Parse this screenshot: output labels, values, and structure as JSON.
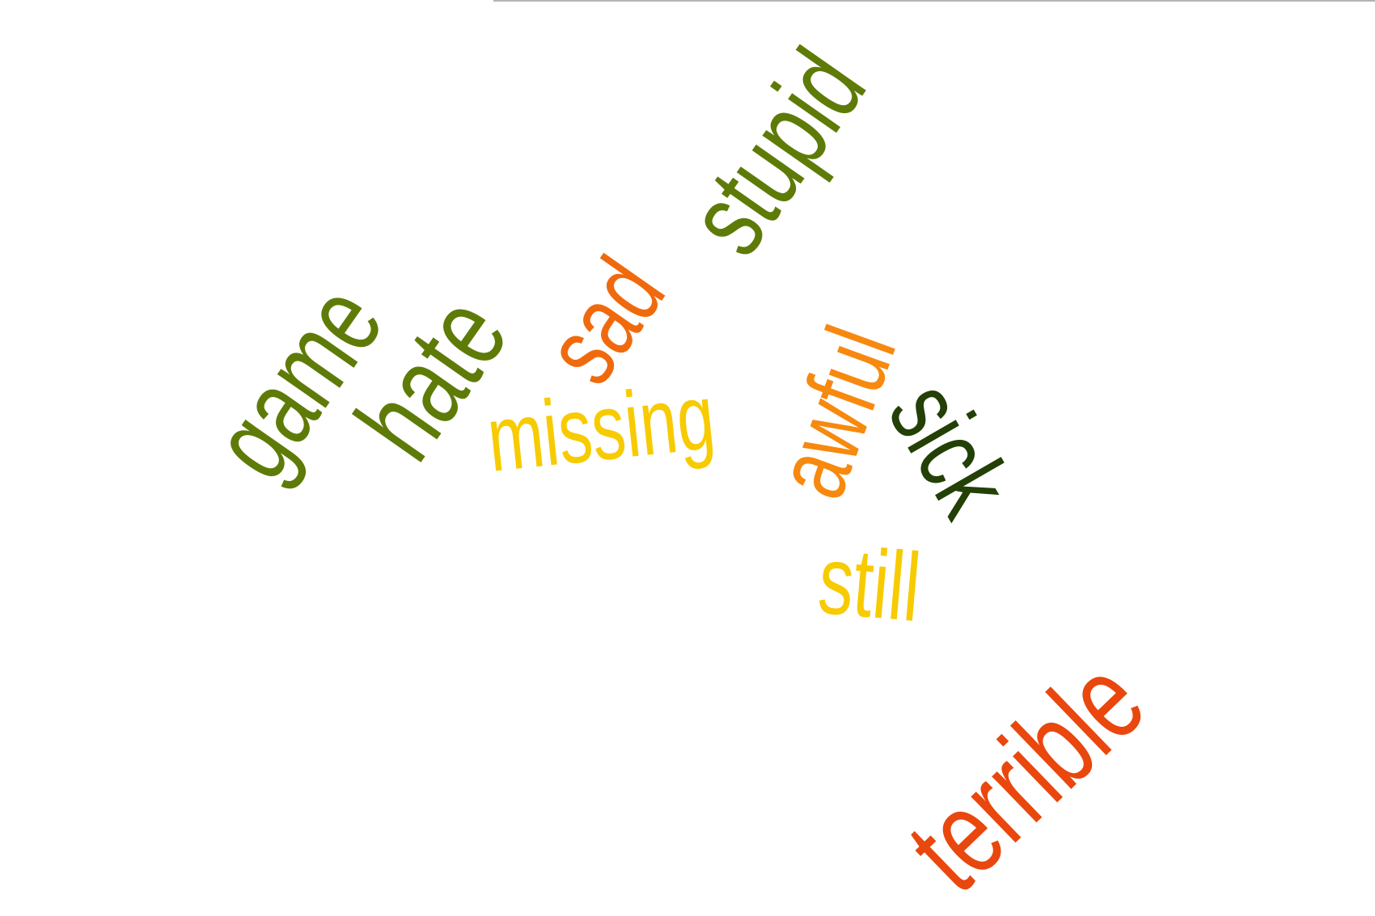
{
  "word_cloud": {
    "words": [
      {
        "id": "game",
        "text": "game",
        "color": "#5e7b07"
      },
      {
        "id": "hate",
        "text": "hate",
        "color": "#5e7b07"
      },
      {
        "id": "sad",
        "text": "sad",
        "color": "#f06a0d"
      },
      {
        "id": "stupid",
        "text": "stupid",
        "color": "#5e7b07"
      },
      {
        "id": "missing",
        "text": "missing",
        "color": "#f7cb00"
      },
      {
        "id": "awful",
        "text": "awful",
        "color": "#f7890e"
      },
      {
        "id": "sick",
        "text": "sick",
        "color": "#234006"
      },
      {
        "id": "still",
        "text": "still",
        "color": "#f7cb00"
      },
      {
        "id": "terrible",
        "text": "terrible",
        "color": "#e9470d"
      }
    ]
  }
}
